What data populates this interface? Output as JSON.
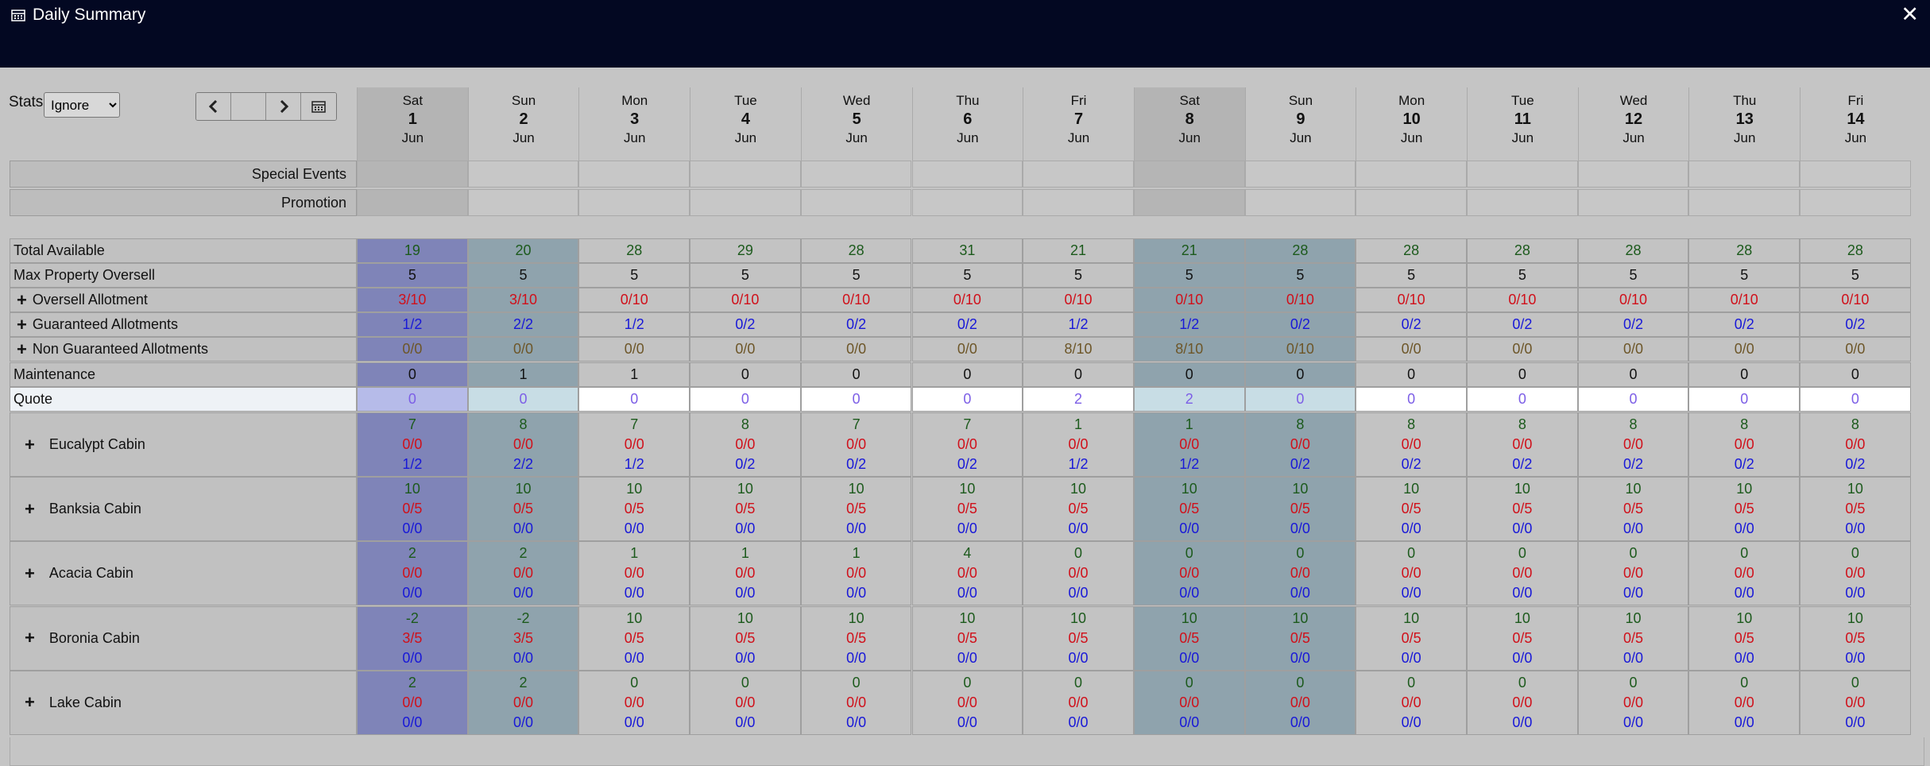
{
  "window": {
    "title": "Daily Summary",
    "close_icon": "✕"
  },
  "toolbar": {
    "stats_label": "Stats",
    "stats_value": "Ignore",
    "stats_options": [
      "Ignore"
    ]
  },
  "colors": {
    "titlebar": "#030822",
    "sat_col": "#7f84b8",
    "sun_col": "#8fa3ad",
    "weekend_col": "#8fa3ad",
    "quote_bg": "#ffffff"
  },
  "days": [
    {
      "dn": "Sat",
      "dd": "1",
      "mm": "Jun",
      "col": "sat"
    },
    {
      "dn": "Sun",
      "dd": "2",
      "mm": "Jun",
      "col": "sun"
    },
    {
      "dn": "Mon",
      "dd": "3",
      "mm": "Jun",
      "col": ""
    },
    {
      "dn": "Tue",
      "dd": "4",
      "mm": "Jun",
      "col": ""
    },
    {
      "dn": "Wed",
      "dd": "5",
      "mm": "Jun",
      "col": ""
    },
    {
      "dn": "Thu",
      "dd": "6",
      "mm": "Jun",
      "col": ""
    },
    {
      "dn": "Fri",
      "dd": "7",
      "mm": "Jun",
      "col": ""
    },
    {
      "dn": "Sat",
      "dd": "8",
      "mm": "Jun",
      "col": "wk"
    },
    {
      "dn": "Sun",
      "dd": "9",
      "mm": "Jun",
      "col": "wk"
    },
    {
      "dn": "Mon",
      "dd": "10",
      "mm": "Jun",
      "col": ""
    },
    {
      "dn": "Tue",
      "dd": "11",
      "mm": "Jun",
      "col": ""
    },
    {
      "dn": "Wed",
      "dd": "12",
      "mm": "Jun",
      "col": ""
    },
    {
      "dn": "Thu",
      "dd": "13",
      "mm": "Jun",
      "col": ""
    },
    {
      "dn": "Fri",
      "dd": "14",
      "mm": "Jun",
      "col": ""
    }
  ],
  "events": [
    {
      "label": "Special Events"
    },
    {
      "label": "Promotion"
    }
  ],
  "rows": [
    {
      "label": "Total Available",
      "plus": false,
      "color": "green",
      "values": [
        "19",
        "20",
        "28",
        "29",
        "28",
        "31",
        "21",
        "21",
        "28",
        "28",
        "28",
        "28",
        "28",
        "28"
      ]
    },
    {
      "label": "Max Property Oversell",
      "plus": false,
      "color": "black",
      "values": [
        "5",
        "5",
        "5",
        "5",
        "5",
        "5",
        "5",
        "5",
        "5",
        "5",
        "5",
        "5",
        "5",
        "5"
      ]
    },
    {
      "label": "Oversell Allotment",
      "plus": true,
      "color": "red",
      "values": [
        "3/10",
        "3/10",
        "0/10",
        "0/10",
        "0/10",
        "0/10",
        "0/10",
        "0/10",
        "0/10",
        "0/10",
        "0/10",
        "0/10",
        "0/10",
        "0/10"
      ]
    },
    {
      "label": "Guaranteed Allotments",
      "plus": true,
      "color": "blue",
      "values": [
        "1/2",
        "2/2",
        "1/2",
        "0/2",
        "0/2",
        "0/2",
        "1/2",
        "1/2",
        "0/2",
        "0/2",
        "0/2",
        "0/2",
        "0/2",
        "0/2"
      ]
    },
    {
      "label": "Non Guaranteed Allotments",
      "plus": true,
      "color": "olive",
      "values": [
        "0/0",
        "0/0",
        "0/0",
        "0/0",
        "0/0",
        "0/0",
        "8/10",
        "8/10",
        "0/10",
        "0/0",
        "0/0",
        "0/0",
        "0/0",
        "0/0"
      ]
    },
    {
      "label": "Maintenance",
      "plus": false,
      "color": "black",
      "values": [
        "0",
        "1",
        "1",
        "0",
        "0",
        "0",
        "0",
        "0",
        "0",
        "0",
        "0",
        "0",
        "0",
        "0"
      ]
    },
    {
      "label": "Quote",
      "plus": false,
      "color": "purple",
      "quote": true,
      "values": [
        "0",
        "0",
        "0",
        "0",
        "0",
        "0",
        "2",
        "2",
        "0",
        "0",
        "0",
        "0",
        "0",
        "0"
      ]
    }
  ],
  "cabins": [
    {
      "label": "Eucalypt Cabin",
      "values": [
        [
          "7",
          "0/0",
          "1/2"
        ],
        [
          "8",
          "0/0",
          "2/2"
        ],
        [
          "7",
          "0/0",
          "1/2"
        ],
        [
          "8",
          "0/0",
          "0/2"
        ],
        [
          "7",
          "0/0",
          "0/2"
        ],
        [
          "7",
          "0/0",
          "0/2"
        ],
        [
          "1",
          "0/0",
          "1/2"
        ],
        [
          "1",
          "0/0",
          "1/2"
        ],
        [
          "8",
          "0/0",
          "0/2"
        ],
        [
          "8",
          "0/0",
          "0/2"
        ],
        [
          "8",
          "0/0",
          "0/2"
        ],
        [
          "8",
          "0/0",
          "0/2"
        ],
        [
          "8",
          "0/0",
          "0/2"
        ],
        [
          "8",
          "0/0",
          "0/2"
        ]
      ]
    },
    {
      "label": "Banksia Cabin",
      "values": [
        [
          "10",
          "0/5",
          "0/0"
        ],
        [
          "10",
          "0/5",
          "0/0"
        ],
        [
          "10",
          "0/5",
          "0/0"
        ],
        [
          "10",
          "0/5",
          "0/0"
        ],
        [
          "10",
          "0/5",
          "0/0"
        ],
        [
          "10",
          "0/5",
          "0/0"
        ],
        [
          "10",
          "0/5",
          "0/0"
        ],
        [
          "10",
          "0/5",
          "0/0"
        ],
        [
          "10",
          "0/5",
          "0/0"
        ],
        [
          "10",
          "0/5",
          "0/0"
        ],
        [
          "10",
          "0/5",
          "0/0"
        ],
        [
          "10",
          "0/5",
          "0/0"
        ],
        [
          "10",
          "0/5",
          "0/0"
        ],
        [
          "10",
          "0/5",
          "0/0"
        ]
      ]
    },
    {
      "label": "Acacia Cabin",
      "values": [
        [
          "2",
          "0/0",
          "0/0"
        ],
        [
          "2",
          "0/0",
          "0/0"
        ],
        [
          "1",
          "0/0",
          "0/0"
        ],
        [
          "1",
          "0/0",
          "0/0"
        ],
        [
          "1",
          "0/0",
          "0/0"
        ],
        [
          "4",
          "0/0",
          "0/0"
        ],
        [
          "0",
          "0/0",
          "0/0"
        ],
        [
          "0",
          "0/0",
          "0/0"
        ],
        [
          "0",
          "0/0",
          "0/0"
        ],
        [
          "0",
          "0/0",
          "0/0"
        ],
        [
          "0",
          "0/0",
          "0/0"
        ],
        [
          "0",
          "0/0",
          "0/0"
        ],
        [
          "0",
          "0/0",
          "0/0"
        ],
        [
          "0",
          "0/0",
          "0/0"
        ]
      ]
    },
    {
      "label": "Boronia Cabin",
      "values": [
        [
          "-2",
          "3/5",
          "0/0"
        ],
        [
          "-2",
          "3/5",
          "0/0"
        ],
        [
          "10",
          "0/5",
          "0/0"
        ],
        [
          "10",
          "0/5",
          "0/0"
        ],
        [
          "10",
          "0/5",
          "0/0"
        ],
        [
          "10",
          "0/5",
          "0/0"
        ],
        [
          "10",
          "0/5",
          "0/0"
        ],
        [
          "10",
          "0/5",
          "0/0"
        ],
        [
          "10",
          "0/5",
          "0/0"
        ],
        [
          "10",
          "0/5",
          "0/0"
        ],
        [
          "10",
          "0/5",
          "0/0"
        ],
        [
          "10",
          "0/5",
          "0/0"
        ],
        [
          "10",
          "0/5",
          "0/0"
        ],
        [
          "10",
          "0/5",
          "0/0"
        ]
      ]
    },
    {
      "label": "Lake Cabin",
      "values": [
        [
          "2",
          "0/0",
          "0/0"
        ],
        [
          "2",
          "0/0",
          "0/0"
        ],
        [
          "0",
          "0/0",
          "0/0"
        ],
        [
          "0",
          "0/0",
          "0/0"
        ],
        [
          "0",
          "0/0",
          "0/0"
        ],
        [
          "0",
          "0/0",
          "0/0"
        ],
        [
          "0",
          "0/0",
          "0/0"
        ],
        [
          "0",
          "0/0",
          "0/0"
        ],
        [
          "0",
          "0/0",
          "0/0"
        ],
        [
          "0",
          "0/0",
          "0/0"
        ],
        [
          "0",
          "0/0",
          "0/0"
        ],
        [
          "0",
          "0/0",
          "0/0"
        ],
        [
          "0",
          "0/0",
          "0/0"
        ],
        [
          "0",
          "0/0",
          "0/0"
        ]
      ]
    }
  ]
}
